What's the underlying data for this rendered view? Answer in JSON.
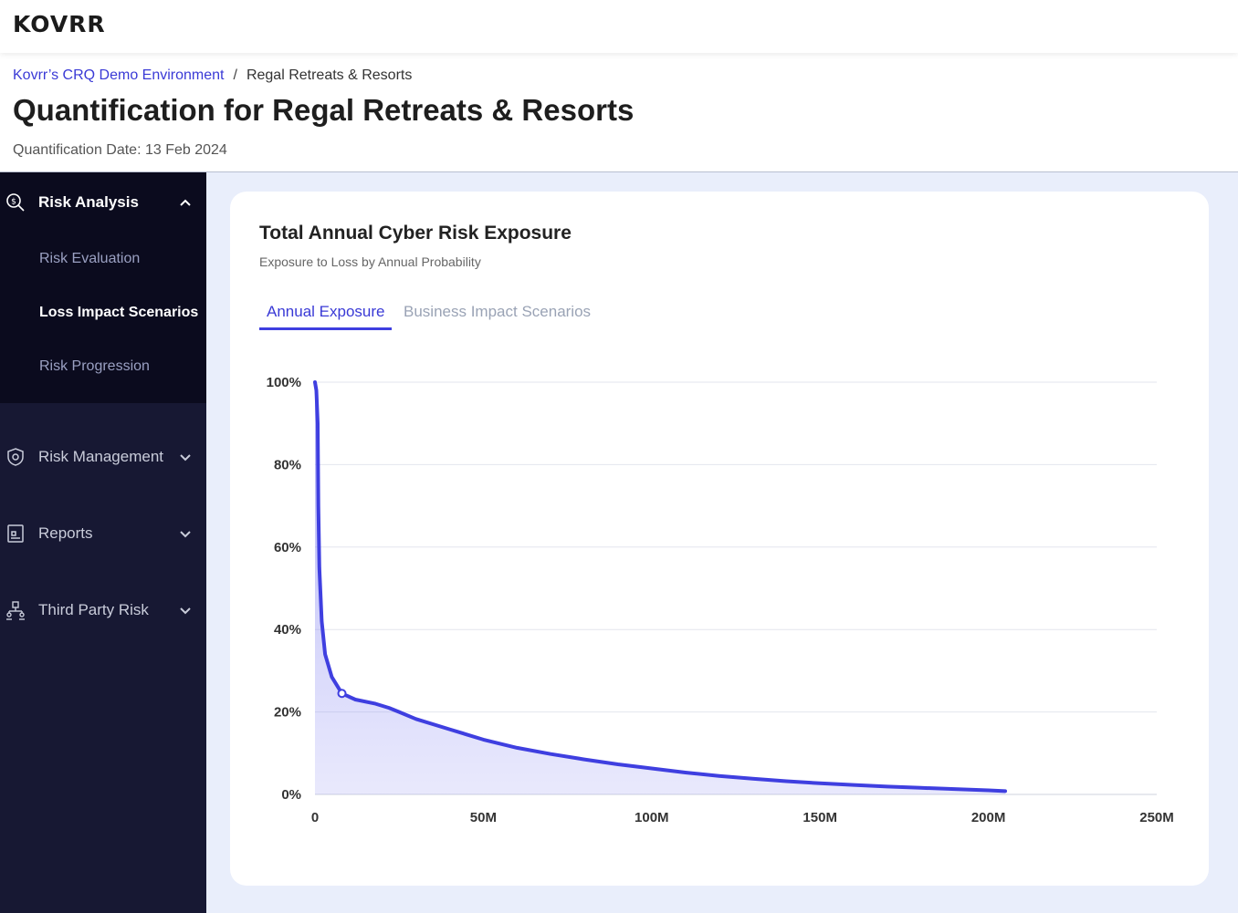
{
  "app": {
    "logo": "KOVRR"
  },
  "breadcrumb": {
    "parent": "Kovrr’s CRQ Demo Environment",
    "separator": "/",
    "current": "Regal Retreats & Resorts"
  },
  "header": {
    "title": "Quantification for Regal Retreats & Resorts",
    "date": "Quantification Date: 13 Feb 2024"
  },
  "sidebar": {
    "risk_analysis": {
      "label": "Risk Analysis",
      "expanded": true,
      "items": [
        {
          "label": "Risk Evaluation",
          "active": false
        },
        {
          "label": "Loss Impact Scenarios",
          "active": true
        },
        {
          "label": "Risk Progression",
          "active": false
        }
      ]
    },
    "risk_management": {
      "label": "Risk Management"
    },
    "reports": {
      "label": "Reports"
    },
    "third_party": {
      "label": "Third Party Risk"
    }
  },
  "card": {
    "title": "Total Annual Cyber Risk Exposure",
    "subtitle": "Exposure to Loss by Annual Probability",
    "tabs": {
      "annual": "Annual Exposure",
      "business": "Business Impact Scenarios"
    }
  },
  "colors": {
    "accent": "#3f3fe0",
    "sidebar_bg": "#171833",
    "sidebar_active_bg": "#0b0b1e",
    "main_bg": "#e9eefb"
  },
  "chart_data": {
    "type": "area",
    "title": "Total Annual Cyber Risk Exposure",
    "xlabel": "",
    "ylabel": "",
    "xlim": [
      0,
      250
    ],
    "ylim": [
      0,
      100
    ],
    "x_ticks": [
      0,
      50,
      100,
      150,
      200,
      250
    ],
    "x_tick_labels": [
      "0",
      "50M",
      "100M",
      "150M",
      "200M",
      "250M"
    ],
    "y_ticks": [
      0,
      20,
      40,
      60,
      80,
      100
    ],
    "y_tick_labels": [
      "0%",
      "20%",
      "40%",
      "60%",
      "80%",
      "100%"
    ],
    "grid": true,
    "series": [
      {
        "name": "Annual Exposure",
        "x": [
          0,
          0.4,
          0.8,
          1,
          1.3,
          2,
          3,
          5,
          8,
          12,
          18,
          22,
          25,
          30,
          40,
          50,
          60,
          70,
          80,
          90,
          100,
          110,
          120,
          130,
          140,
          150,
          160,
          170,
          180,
          190,
          200,
          205
        ],
        "y": [
          100,
          98,
          90,
          70,
          55,
          42,
          34,
          28.5,
          24.5,
          23,
          22,
          21,
          20,
          18.3,
          15.8,
          13.3,
          11.3,
          9.8,
          8.5,
          7.3,
          6.3,
          5.3,
          4.5,
          3.8,
          3.2,
          2.7,
          2.3,
          1.9,
          1.6,
          1.3,
          1.0,
          0.8
        ]
      }
    ],
    "highlight_point": {
      "x": 8,
      "y": 24.5
    }
  }
}
